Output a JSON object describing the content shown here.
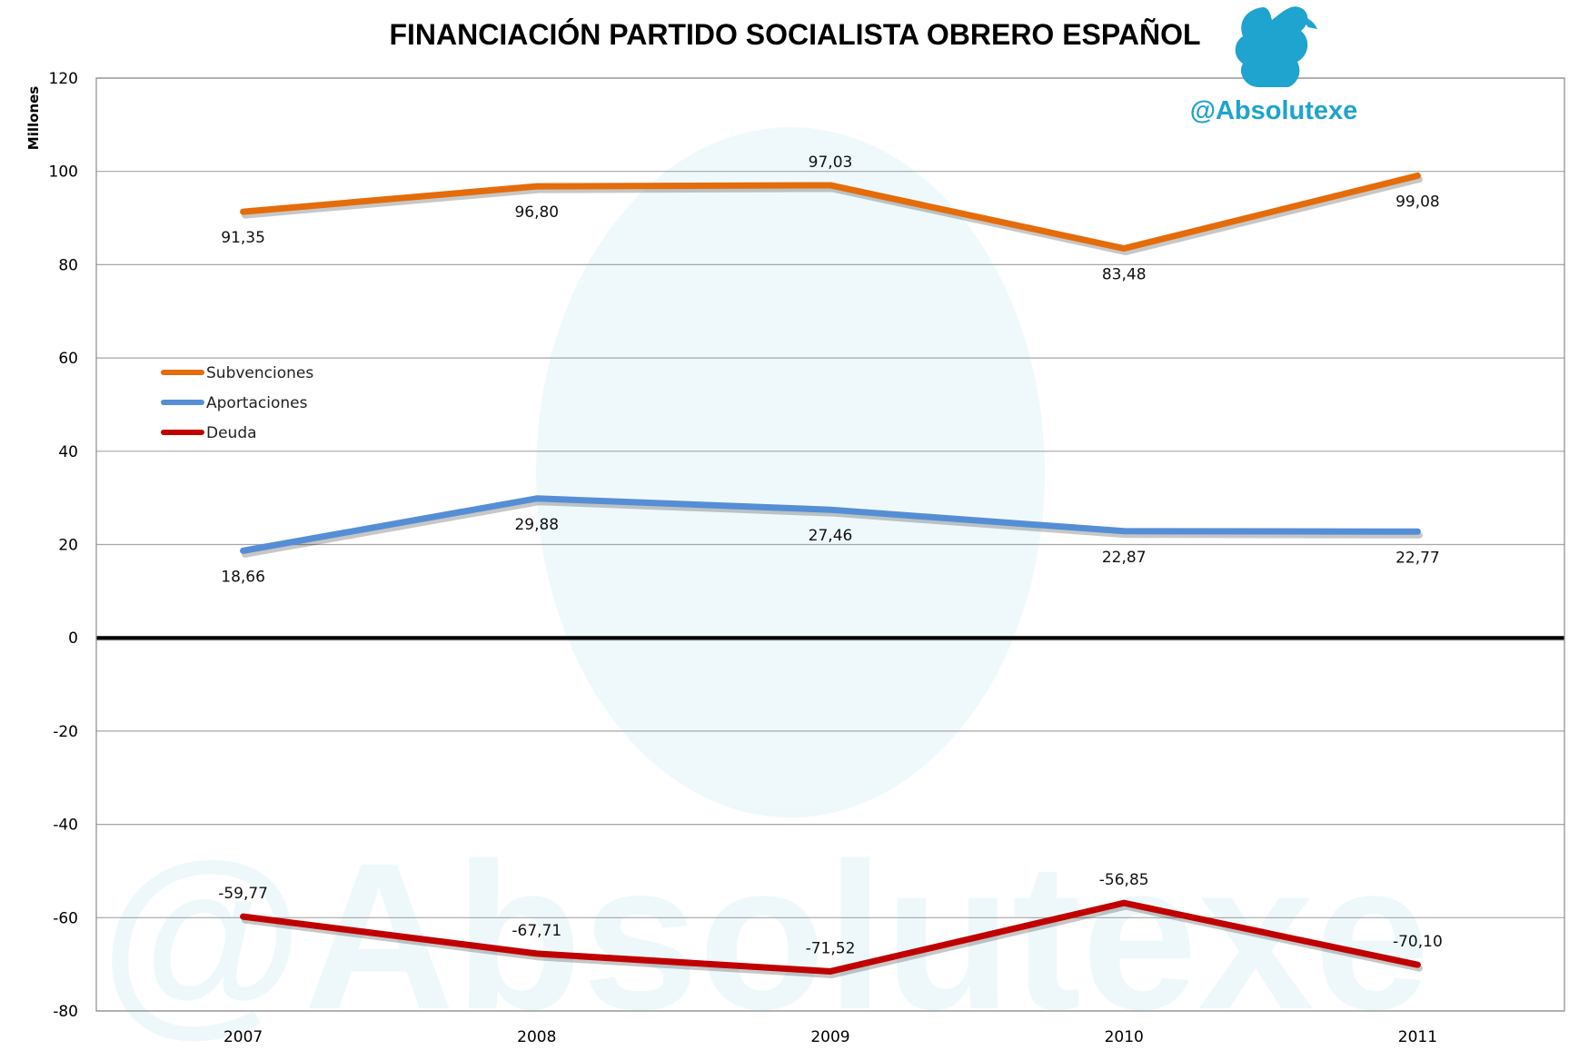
{
  "watermark": {
    "text": "@Absolutexe",
    "color": "#1fa3cf",
    "icon": "griffin-icon"
  },
  "chart_data": {
    "type": "line",
    "title": "FINANCIACIÓN PARTIDO SOCIALISTA OBRERO ESPAÑOL",
    "xlabel": "",
    "ylabel": "Millones",
    "categories": [
      "2007",
      "2008",
      "2009",
      "2010",
      "2011"
    ],
    "ylim": [
      -80,
      120
    ],
    "yticks": [
      -80,
      -60,
      -40,
      -20,
      0,
      20,
      40,
      60,
      80,
      100,
      120
    ],
    "grid": true,
    "legend_position": "left",
    "series": [
      {
        "name": "Subvenciones",
        "color": "#e46c0a",
        "values": [
          91.35,
          96.8,
          97.03,
          83.48,
          99.08
        ],
        "labels": [
          "91,35",
          "96,80",
          "97,03",
          "83,48",
          "99,08"
        ],
        "label_side": [
          "below",
          "below",
          "above",
          "below",
          "below"
        ]
      },
      {
        "name": "Aportaciones",
        "color": "#558ed5",
        "values": [
          18.66,
          29.88,
          27.46,
          22.87,
          22.77
        ],
        "labels": [
          "18,66",
          "29,88",
          "27,46",
          "22,87",
          "22,77"
        ],
        "label_side": [
          "below",
          "below",
          "below",
          "below",
          "below"
        ]
      },
      {
        "name": "Deuda",
        "color": "#c00000",
        "values": [
          -59.77,
          -67.71,
          -71.52,
          -56.85,
          -70.1
        ],
        "labels": [
          "-59,77",
          "-67,71",
          "-71,52",
          "-56,85",
          "-70,10"
        ],
        "label_side": [
          "above",
          "above",
          "above",
          "above",
          "above"
        ]
      }
    ]
  }
}
